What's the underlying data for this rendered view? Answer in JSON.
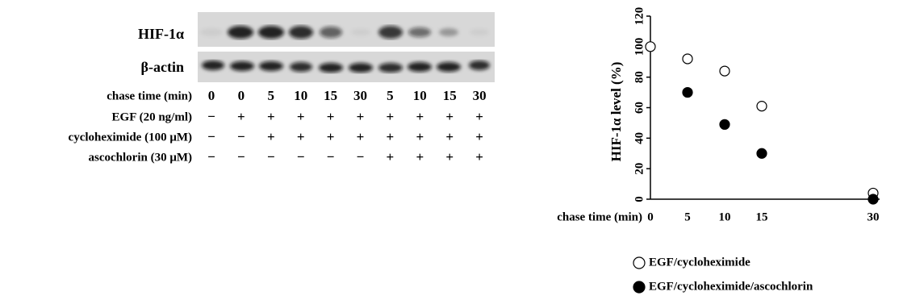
{
  "blot": {
    "bands": [
      "HIF-1α",
      "β-actin"
    ],
    "conditions": [
      {
        "label": "chase time (min)",
        "lanes": [
          0,
          0,
          5,
          10,
          15,
          30,
          5,
          10,
          15,
          30
        ]
      },
      {
        "label": "EGF (20 ng/ml)",
        "lanes": [
          "−",
          "+",
          "+",
          "+",
          "+",
          "+",
          "+",
          "+",
          "+",
          "+"
        ]
      },
      {
        "label": "cycloheximide (100 μM)",
        "lanes": [
          "−",
          "−",
          "+",
          "+",
          "+",
          "+",
          "+",
          "+",
          "+",
          "+"
        ]
      },
      {
        "label": "ascochlorin (30 μM)",
        "lanes": [
          "−",
          "−",
          "−",
          "−",
          "−",
          "−",
          "+",
          "+",
          "+",
          "+"
        ]
      }
    ]
  },
  "chart_data": {
    "type": "scatter",
    "ylabel": "HIF-1α level (%)",
    "xlabel": "chase time (min)",
    "x": [
      0,
      5,
      10,
      15,
      30
    ],
    "xlim": [
      0,
      30
    ],
    "xticks": [
      0,
      5,
      10,
      15,
      30
    ],
    "ylim": [
      0,
      120
    ],
    "yticks": [
      0,
      20,
      40,
      60,
      80,
      100,
      120
    ],
    "series": [
      {
        "name": "EGF/cycloheximide",
        "color": "#ffffff",
        "values": [
          100,
          92,
          84,
          61,
          4
        ]
      },
      {
        "name": "EGF/cycloheximide/ascochlorin",
        "color": "#000000",
        "values": [
          null,
          70,
          49,
          30,
          0
        ]
      }
    ]
  }
}
